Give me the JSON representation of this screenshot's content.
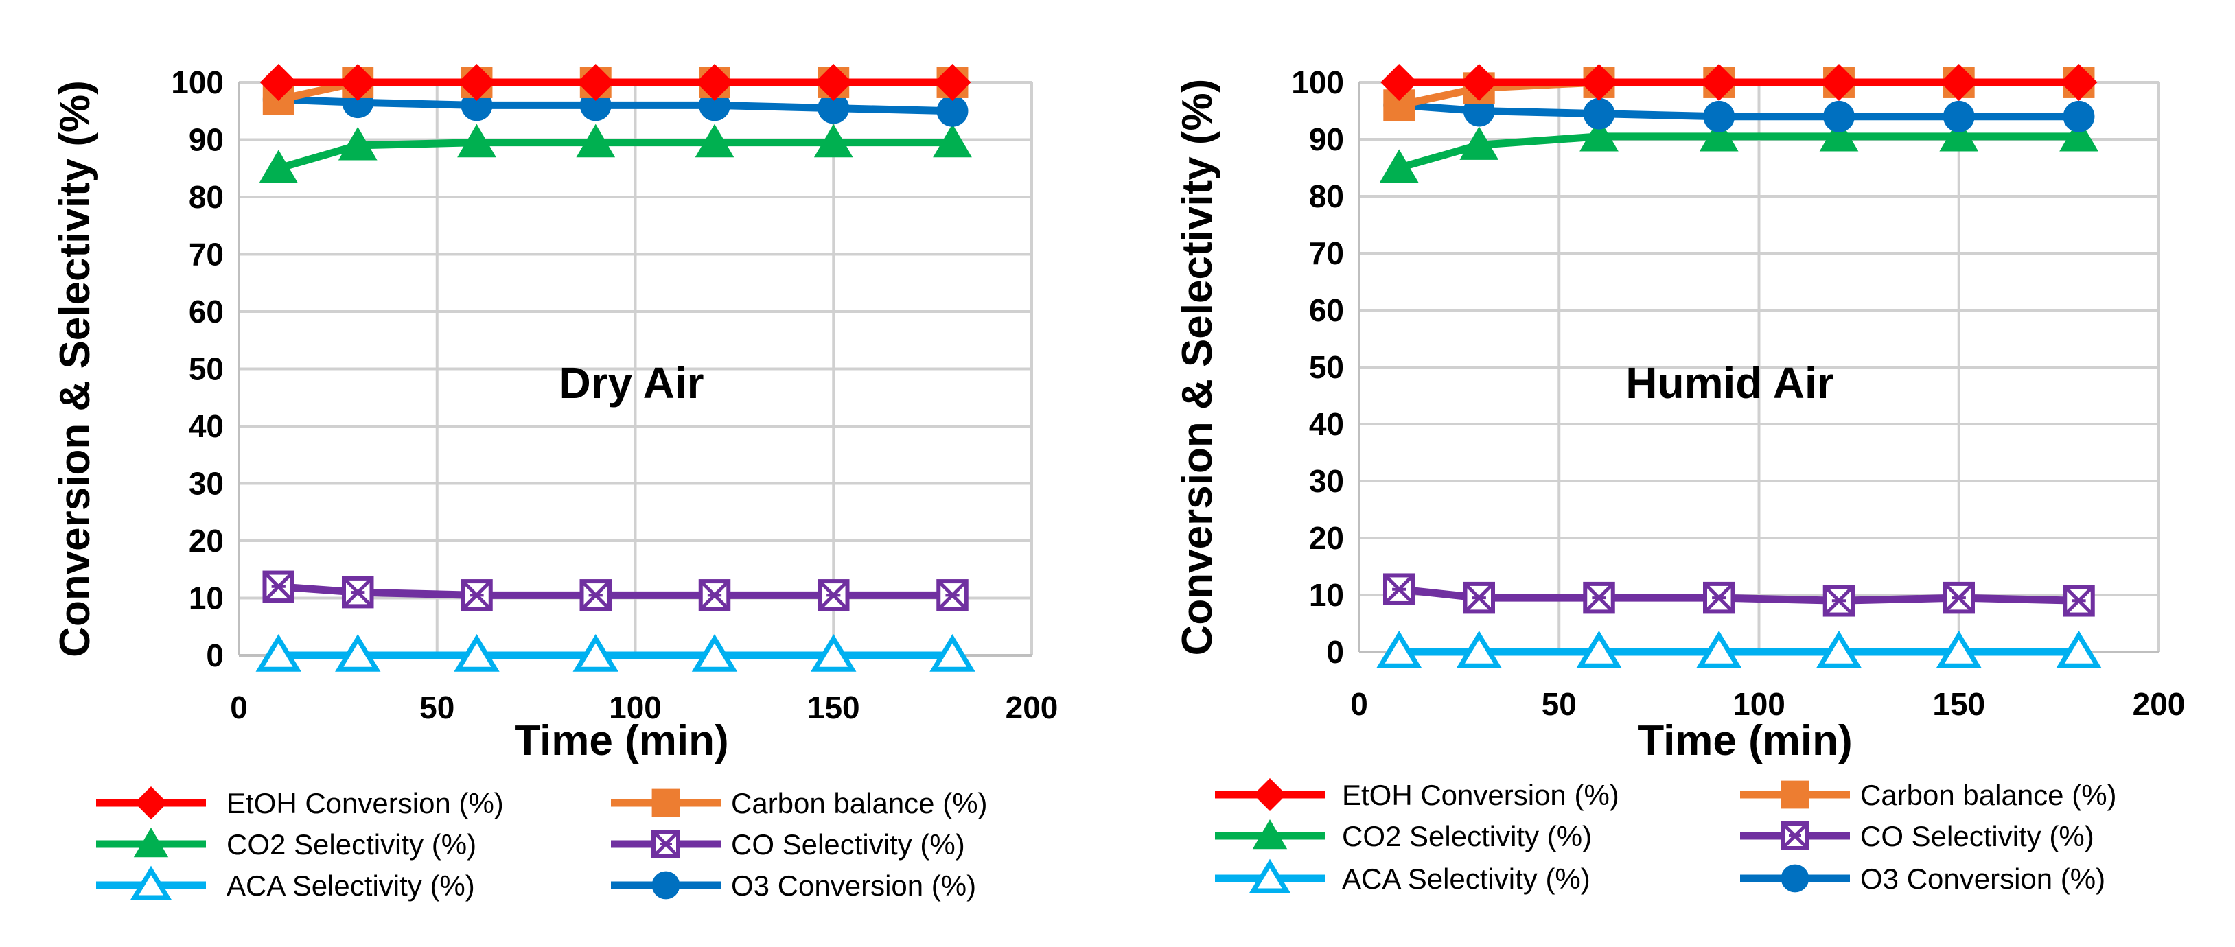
{
  "chart_data": [
    {
      "type": "line",
      "title": "",
      "annotation": "Dry Air",
      "xlabel": "Time (min)",
      "ylabel": "Conversion & Selectivity (%)",
      "xlim": [
        0,
        200
      ],
      "ylim": [
        0,
        100
      ],
      "xticks": [
        0,
        50,
        100,
        150,
        200
      ],
      "yticks": [
        0,
        10,
        20,
        30,
        40,
        50,
        60,
        70,
        80,
        90,
        100
      ],
      "grid": true,
      "legend_position": "bottom",
      "x": [
        10,
        30,
        60,
        90,
        120,
        150,
        180
      ],
      "series": [
        {
          "name": "EtOH Conversion (%)",
          "color": "#FF0000",
          "marker": "diamond",
          "values": [
            100,
            100,
            100,
            100,
            100,
            100,
            100
          ]
        },
        {
          "name": "Carbon balance (%)",
          "color": "#ED7D31",
          "marker": "square",
          "values": [
            97,
            100,
            100,
            100,
            100,
            100,
            100
          ]
        },
        {
          "name": "CO2 Selectivity (%)",
          "color": "#00B050",
          "marker": "triangle",
          "values": [
            85,
            89,
            89.5,
            89.5,
            89.5,
            89.5,
            89.5
          ]
        },
        {
          "name": "CO Selectivity (%)",
          "color": "#7030A0",
          "marker": "square-x",
          "values": [
            12,
            11,
            10.5,
            10.5,
            10.5,
            10.5,
            10.5
          ]
        },
        {
          "name": "ACA Selectivity (%)",
          "color": "#00B0F0",
          "marker": "triangle-open",
          "values": [
            0,
            0,
            0,
            0,
            0,
            0,
            0
          ]
        },
        {
          "name": "O3 Conversion (%)",
          "color": "#0070C0",
          "marker": "circle",
          "values": [
            97,
            96.5,
            96,
            96,
            96,
            95.5,
            95
          ]
        }
      ]
    },
    {
      "type": "line",
      "title": "",
      "annotation": "Humid Air",
      "xlabel": "Time (min)",
      "ylabel": "Conversion & Selectivity (%)",
      "xlim": [
        0,
        200
      ],
      "ylim": [
        0,
        100
      ],
      "xticks": [
        0,
        50,
        100,
        150,
        200
      ],
      "yticks": [
        0,
        10,
        20,
        30,
        40,
        50,
        60,
        70,
        80,
        90,
        100
      ],
      "grid": true,
      "legend_position": "bottom",
      "x": [
        10,
        30,
        60,
        90,
        120,
        150,
        180
      ],
      "series": [
        {
          "name": "EtOH Conversion (%)",
          "color": "#FF0000",
          "marker": "diamond",
          "values": [
            100,
            100,
            100,
            100,
            100,
            100,
            100
          ]
        },
        {
          "name": "Carbon balance (%)",
          "color": "#ED7D31",
          "marker": "square",
          "values": [
            96,
            99,
            100,
            100,
            100,
            100,
            100
          ]
        },
        {
          "name": "CO2 Selectivity (%)",
          "color": "#00B050",
          "marker": "triangle",
          "values": [
            85,
            89,
            90.5,
            90.5,
            90.5,
            90.5,
            90.5
          ]
        },
        {
          "name": "CO Selectivity (%)",
          "color": "#7030A0",
          "marker": "square-x",
          "values": [
            11,
            9.5,
            9.5,
            9.5,
            9,
            9.5,
            9
          ]
        },
        {
          "name": "ACA Selectivity (%)",
          "color": "#00B0F0",
          "marker": "triangle-open",
          "values": [
            0,
            0,
            0,
            0,
            0,
            0,
            0
          ]
        },
        {
          "name": "O3 Conversion (%)",
          "color": "#0070C0",
          "marker": "circle",
          "values": [
            96,
            95,
            94.5,
            94,
            94,
            94,
            94
          ]
        }
      ]
    }
  ]
}
